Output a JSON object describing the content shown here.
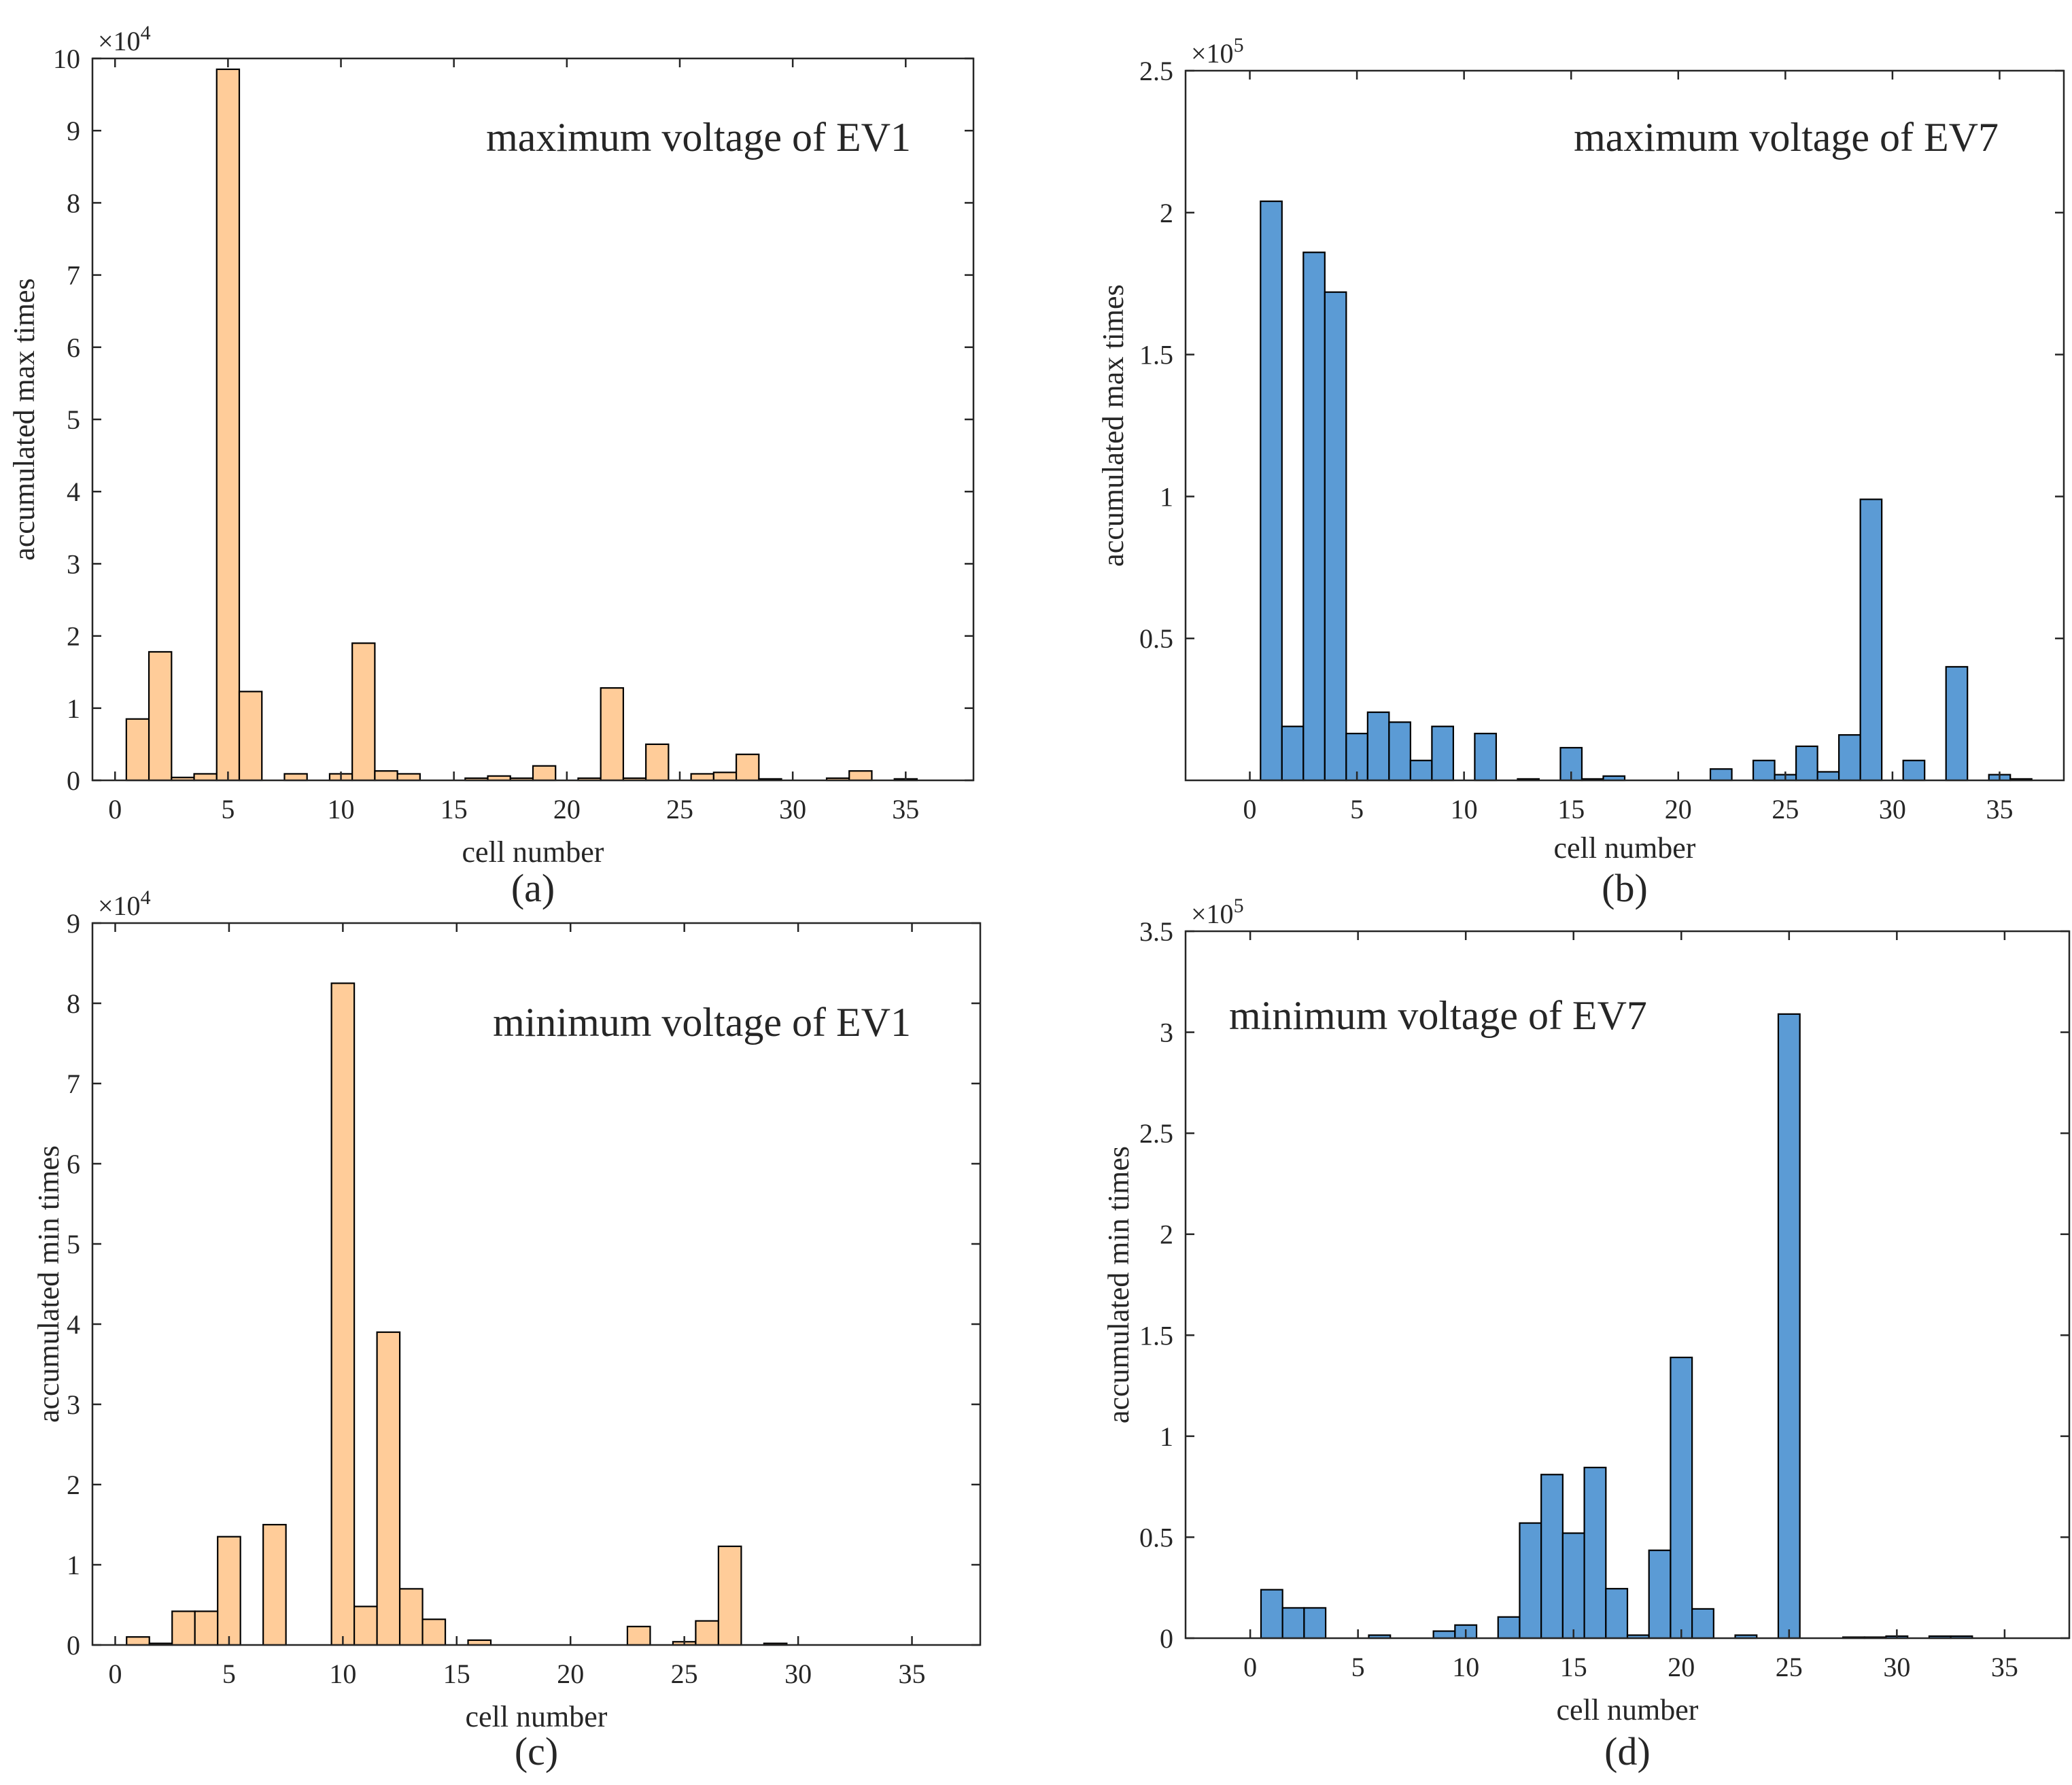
{
  "chart_data": [
    {
      "type": "bar",
      "panel_label": "(a)",
      "title": "maximum voltage of EV1",
      "xlabel": "cell number",
      "ylabel": "accumulated max times",
      "y_exponent": "4",
      "y_exponent_text": "×10",
      "y_scale": 10000,
      "bar_color": "#FFCC99",
      "xlim": [
        -1,
        38
      ],
      "ylim": [
        0,
        100000
      ],
      "xticks": [
        0,
        5,
        10,
        15,
        20,
        25,
        30,
        35
      ],
      "xtick_labels": [
        "0",
        "5",
        "10",
        "15",
        "20",
        "25",
        "30",
        "35"
      ],
      "yticks": [
        0,
        10000,
        20000,
        30000,
        40000,
        50000,
        60000,
        70000,
        80000,
        90000,
        100000
      ],
      "ytick_labels": [
        "0",
        "1",
        "2",
        "3",
        "4",
        "5",
        "6",
        "7",
        "8",
        "9",
        "10"
      ],
      "x": [
        1,
        2,
        3,
        4,
        5,
        6,
        8,
        10,
        11,
        12,
        13,
        16,
        17,
        18,
        19,
        21,
        22,
        23,
        24,
        26,
        27,
        28,
        29,
        32,
        33,
        35
      ],
      "values": [
        8500,
        17800,
        400,
        900,
        98500,
        12300,
        900,
        900,
        19000,
        1300,
        900,
        300,
        600,
        300,
        2000,
        300,
        12800,
        300,
        5000,
        900,
        1100,
        3600,
        200,
        300,
        1300,
        200
      ]
    },
    {
      "type": "bar",
      "panel_label": "(b)",
      "title": "maximum voltage of EV7",
      "xlabel": "cell number",
      "ylabel": "accumulated max times",
      "y_exponent": "5",
      "y_exponent_text": "×10",
      "y_scale": 100000,
      "bar_color": "#5B9BD5",
      "xlim": [
        -3,
        38
      ],
      "ylim": [
        0,
        250000
      ],
      "xticks": [
        0,
        5,
        10,
        15,
        20,
        25,
        30,
        35
      ],
      "xtick_labels": [
        "0",
        "5",
        "10",
        "15",
        "20",
        "25",
        "30",
        "35"
      ],
      "yticks": [
        50000,
        100000,
        150000,
        200000,
        250000
      ],
      "ytick_labels": [
        "0.5",
        "1",
        "1.5",
        "2",
        "2.5"
      ],
      "x": [
        1,
        2,
        3,
        4,
        5,
        6,
        7,
        8,
        9,
        11,
        13,
        15,
        16,
        17,
        22,
        24,
        25,
        26,
        27,
        28,
        29,
        31,
        33,
        35,
        36
      ],
      "values": [
        204000,
        19000,
        186000,
        172000,
        16500,
        24000,
        20500,
        7000,
        19000,
        16500,
        500,
        11500,
        500,
        1500,
        4000,
        7000,
        2000,
        12000,
        3000,
        16000,
        99000,
        7000,
        40000,
        2000,
        500
      ]
    },
    {
      "type": "bar",
      "panel_label": "(c)",
      "title": "minimum voltage of EV1",
      "xlabel": "cell number",
      "ylabel": "accumulated min times",
      "y_exponent": "4",
      "y_exponent_text": "×10",
      "y_scale": 10000,
      "bar_color": "#FFCC99",
      "xlim": [
        -1,
        38
      ],
      "ylim": [
        0,
        90000
      ],
      "xticks": [
        0,
        5,
        10,
        15,
        20,
        25,
        30,
        35
      ],
      "xtick_labels": [
        "0",
        "5",
        "10",
        "15",
        "20",
        "25",
        "30",
        "35"
      ],
      "yticks": [
        0,
        10000,
        20000,
        30000,
        40000,
        50000,
        60000,
        70000,
        80000,
        90000
      ],
      "ytick_labels": [
        "0",
        "1",
        "2",
        "3",
        "4",
        "5",
        "6",
        "7",
        "8",
        "9"
      ],
      "x": [
        1,
        2,
        3,
        4,
        5,
        7,
        10,
        11,
        12,
        13,
        14,
        16,
        23,
        25,
        26,
        27,
        29
      ],
      "values": [
        1000,
        200,
        4200,
        4200,
        13500,
        15000,
        82500,
        4800,
        39000,
        7000,
        3200,
        600,
        2300,
        400,
        3000,
        12300,
        200
      ]
    },
    {
      "type": "bar",
      "panel_label": "(d)",
      "title": "minimum voltage of EV7",
      "xlabel": "cell number",
      "ylabel": "accumulated min times",
      "y_exponent": "5",
      "y_exponent_text": "×10",
      "y_scale": 100000,
      "bar_color": "#5B9BD5",
      "xlim": [
        -3,
        38
      ],
      "ylim": [
        0,
        350000
      ],
      "xticks": [
        0,
        5,
        10,
        15,
        20,
        25,
        30,
        35
      ],
      "xtick_labels": [
        "0",
        "5",
        "10",
        "15",
        "20",
        "25",
        "30",
        "35"
      ],
      "yticks": [
        0,
        50000,
        100000,
        150000,
        200000,
        250000,
        300000,
        350000
      ],
      "ytick_labels": [
        "0",
        "0.5",
        "1",
        "1.5",
        "2",
        "2.5",
        "3",
        "3.5"
      ],
      "x": [
        1,
        2,
        3,
        6,
        9,
        10,
        12,
        13,
        14,
        15,
        16,
        17,
        18,
        19,
        20,
        21,
        23,
        25,
        28,
        29,
        30,
        32,
        33
      ],
      "values": [
        24000,
        15000,
        15000,
        1500,
        3500,
        6500,
        10500,
        57000,
        81000,
        52000,
        84500,
        24500,
        1500,
        43500,
        139000,
        14500,
        1500,
        309000,
        500,
        500,
        1000,
        1000,
        1000
      ]
    }
  ]
}
